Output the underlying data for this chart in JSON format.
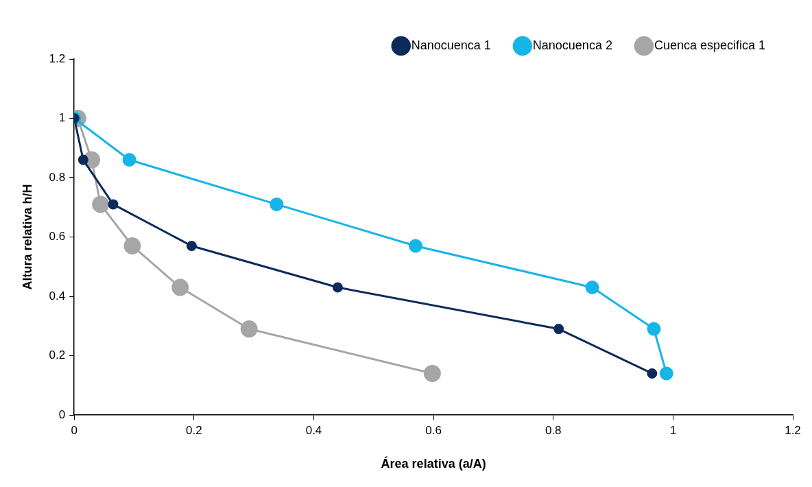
{
  "chart_data": {
    "type": "line",
    "xlabel": "Área relativa (a/A)",
    "ylabel": "Altura relativa h/H",
    "xlim": [
      0,
      1.2
    ],
    "ylim": [
      0,
      1.2
    ],
    "xticks": [
      0,
      0.2,
      0.4,
      0.6,
      0.8,
      1,
      1.2
    ],
    "yticks": [
      0,
      0.2,
      0.4,
      0.6,
      0.8,
      1,
      1.2
    ],
    "grid": false,
    "legend": "top right",
    "marker": "circle",
    "line_style": "solid",
    "series": [
      {
        "name": "Nanocuenca 1",
        "color": "#0d2a5c",
        "x": [
          0,
          0.015,
          0.065,
          0.196,
          0.44,
          0.809,
          0.965
        ],
        "values": [
          1,
          0.86,
          0.71,
          0.57,
          0.43,
          0.29,
          0.14
        ]
      },
      {
        "name": "Nanocuenca 2",
        "color": "#17b4e8",
        "x": [
          0,
          0.092,
          0.338,
          0.57,
          0.865,
          0.968,
          0.989
        ],
        "values": [
          1,
          0.86,
          0.71,
          0.57,
          0.43,
          0.29,
          0.14
        ]
      },
      {
        "name": "Cuenca especifica 1",
        "color": "#a6a6a6",
        "x": [
          0.006,
          0.029,
          0.044,
          0.097,
          0.177,
          0.292,
          0.598
        ],
        "values": [
          1,
          0.86,
          0.71,
          0.57,
          0.43,
          0.29,
          0.14
        ]
      }
    ]
  }
}
